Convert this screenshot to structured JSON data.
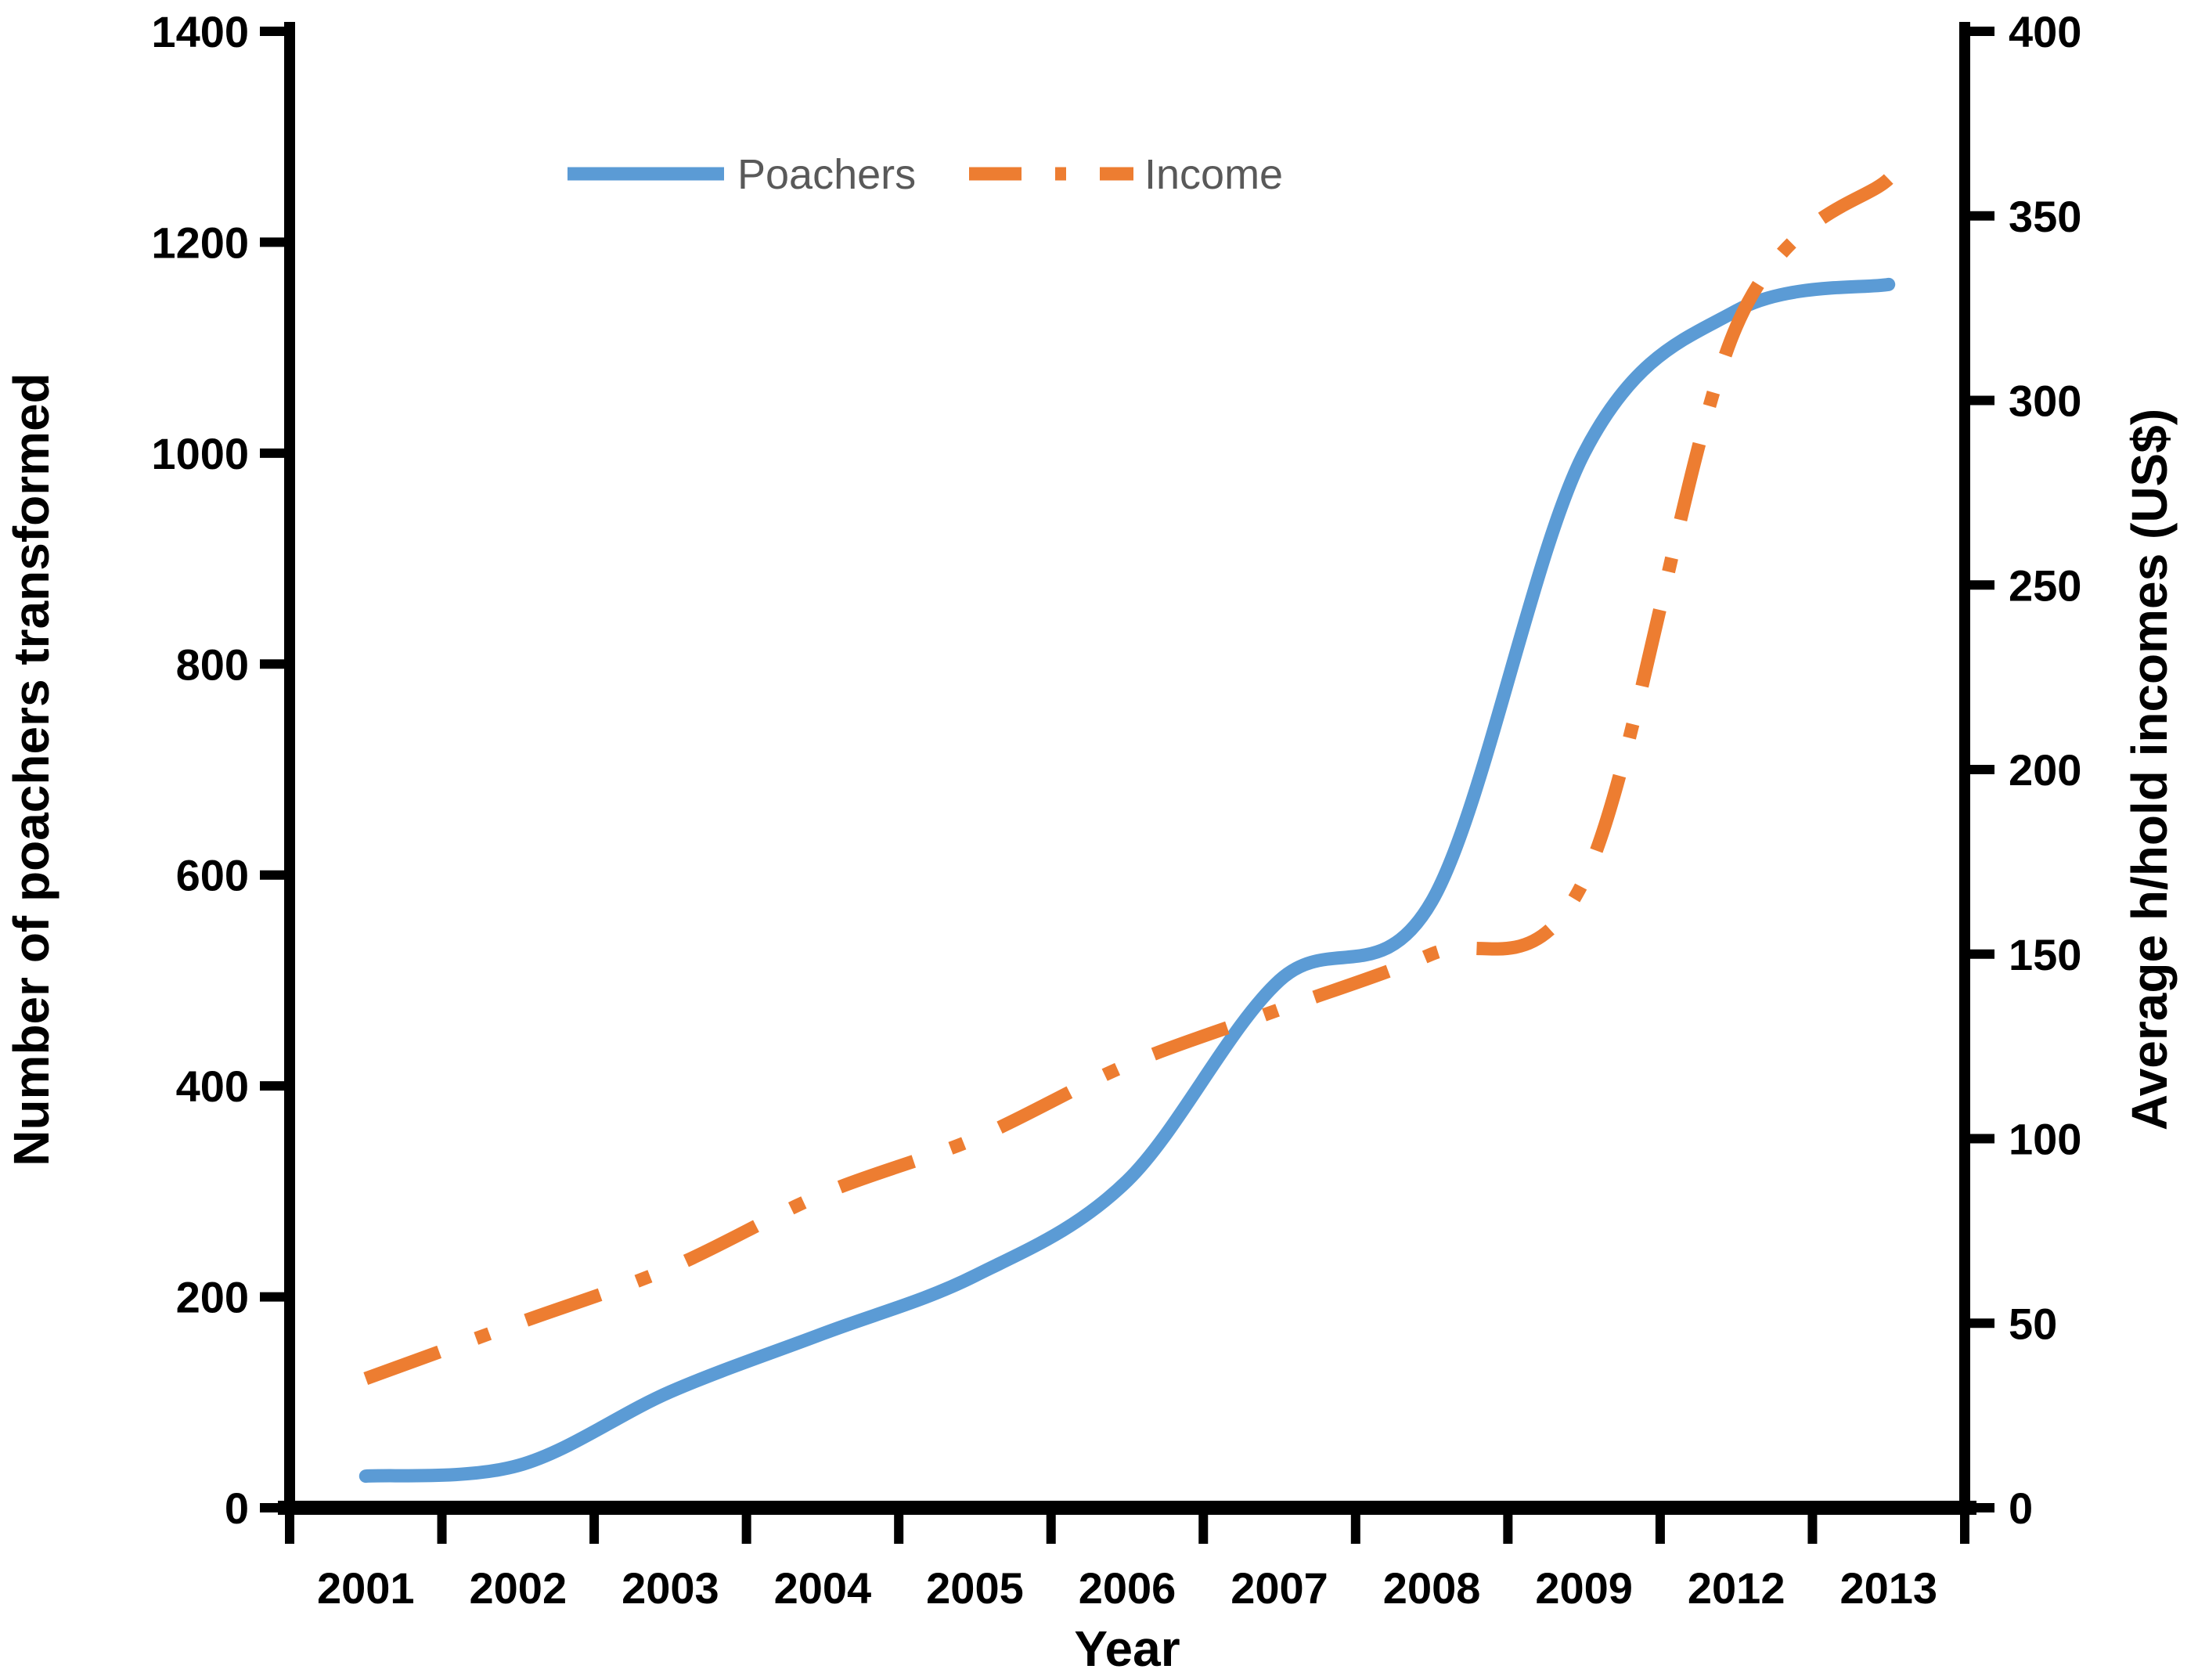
{
  "chart_data": {
    "type": "line",
    "title": "",
    "categories": [
      "2001",
      "2002",
      "2003",
      "2004",
      "2005",
      "2006",
      "2007",
      "2008",
      "2009",
      "2012",
      "2013"
    ],
    "series": [
      {
        "name": "Poachers",
        "axis": "left",
        "color": "#5B9BD5",
        "style": "solid",
        "values": [
          30,
          40,
          110,
          165,
          220,
          310,
          500,
          575,
          1000,
          1135,
          1160
        ]
      },
      {
        "name": "Income",
        "axis": "right",
        "color": "#ED7D31",
        "style": "dash-dot",
        "values": [
          35,
          50,
          65,
          85,
          100,
          120,
          135,
          150,
          170,
          320,
          360
        ]
      }
    ],
    "x_axis": {
      "label": "Year"
    },
    "left_axis": {
      "label": "Number of poachers transformed",
      "min": 0,
      "max": 1400,
      "step": 200
    },
    "right_axis": {
      "label": "Average h/hold incomes (US$)",
      "min": 0,
      "max": 400,
      "step": 50
    },
    "legend": {
      "position": "top-center",
      "items": [
        {
          "label": "Poachers",
          "color": "#5B9BD5",
          "style": "solid"
        },
        {
          "label": "Income",
          "color": "#ED7D31",
          "style": "dash-dot"
        }
      ]
    },
    "grid": false,
    "background": "#ffffff",
    "axis_color": "#000000"
  }
}
